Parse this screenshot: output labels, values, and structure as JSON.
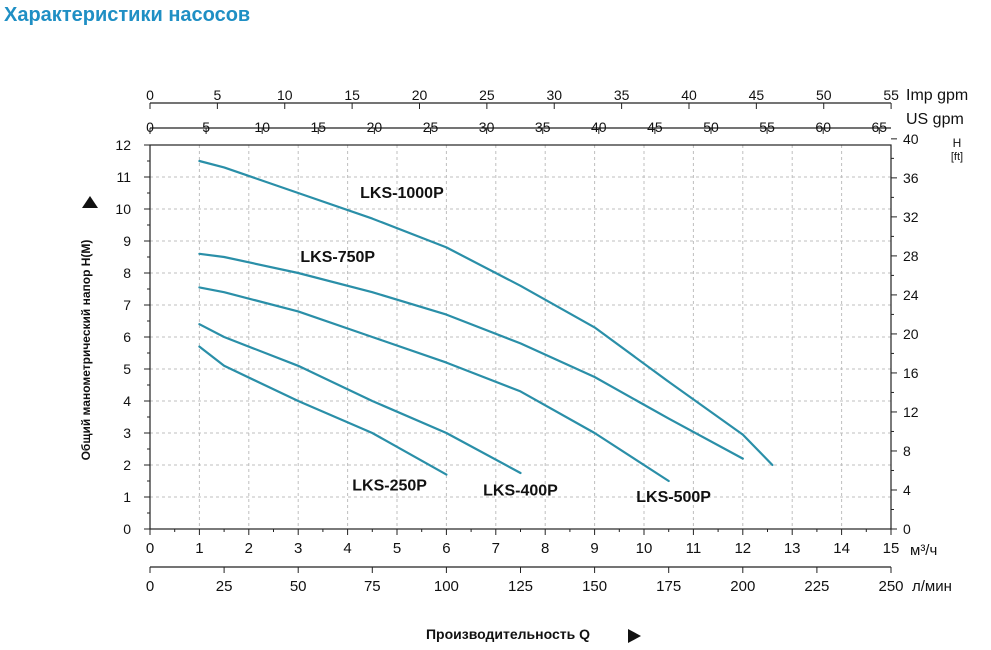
{
  "page_title": "Характеристики насосов",
  "colors": {
    "title": "#1f8fc4",
    "curve": "#2a8fa8",
    "grid": "#bfbfbf",
    "axis": "#222222"
  },
  "chart_data": {
    "type": "line",
    "title": "Характеристики насосов",
    "xlabel": "Производительность Q",
    "ylabel": "Общий манометрический напор H(M)",
    "y2label": "H [ft]",
    "xlim": [
      0,
      15
    ],
    "ylim": [
      0,
      12
    ],
    "grid": true,
    "x_axes": {
      "m3h": {
        "unit": "м³/ч",
        "ticks": [
          "0",
          "1",
          "2",
          "3",
          "4",
          "5",
          "6",
          "7",
          "8",
          "9",
          "10",
          "11",
          "12",
          "13",
          "14",
          "15"
        ]
      },
      "lmin": {
        "unit": "л/мин",
        "ticks": [
          "0",
          "25",
          "50",
          "75",
          "100",
          "125",
          "150",
          "175",
          "200",
          "225",
          "250"
        ]
      },
      "us_gpm": {
        "unit": "US gpm",
        "ticks": [
          "0",
          "5",
          "10",
          "15",
          "20",
          "25",
          "30",
          "35",
          "40",
          "45",
          "50",
          "55",
          "60",
          "65"
        ]
      },
      "imp_gpm": {
        "unit": "Imp gpm",
        "ticks": [
          "0",
          "5",
          "10",
          "15",
          "20",
          "25",
          "30",
          "35",
          "40",
          "45",
          "50",
          "55"
        ]
      }
    },
    "y_axes": {
      "m": {
        "ticks": [
          "0",
          "1",
          "2",
          "3",
          "4",
          "5",
          "6",
          "7",
          "8",
          "9",
          "10",
          "11",
          "12"
        ]
      },
      "ft": {
        "unit_top": "H",
        "unit_bottom": "[ft]",
        "ticks": [
          "0",
          "4",
          "8",
          "12",
          "16",
          "20",
          "24",
          "28",
          "32",
          "36",
          "40"
        ]
      }
    },
    "series": [
      {
        "name": "LKS-250P",
        "x": [
          1,
          1.5,
          3,
          4.5,
          6
        ],
        "y": [
          5.7,
          5.1,
          4.0,
          3.0,
          1.7
        ]
      },
      {
        "name": "LKS-400P",
        "x": [
          1,
          1.5,
          3,
          4.5,
          6,
          7.5
        ],
        "y": [
          6.4,
          6.0,
          5.1,
          4.0,
          3.0,
          1.75
        ]
      },
      {
        "name": "LKS-500P",
        "x": [
          1,
          1.5,
          3,
          4.5,
          6,
          7.5,
          9,
          10.5
        ],
        "y": [
          7.55,
          7.4,
          6.8,
          6.0,
          5.2,
          4.3,
          3.0,
          1.5
        ]
      },
      {
        "name": "LKS-750P",
        "x": [
          1,
          1.5,
          3,
          4.5,
          6,
          7.5,
          9,
          10.5,
          12
        ],
        "y": [
          8.6,
          8.5,
          8.0,
          7.4,
          6.7,
          5.8,
          4.75,
          3.45,
          2.2
        ]
      },
      {
        "name": "LKS-1000P",
        "x": [
          1,
          1.5,
          3,
          4.5,
          6,
          7.5,
          9,
          10.5,
          12,
          12.6
        ],
        "y": [
          11.5,
          11.3,
          10.5,
          9.7,
          8.8,
          7.6,
          6.3,
          4.6,
          2.95,
          2.0
        ]
      }
    ],
    "labels": {
      "LKS-1000P": "LKS-1000P",
      "LKS-750P": "LKS-750P",
      "LKS-500P": "LKS-500P",
      "LKS-400P": "LKS-400P",
      "LKS-250P": "LKS-250P"
    }
  }
}
